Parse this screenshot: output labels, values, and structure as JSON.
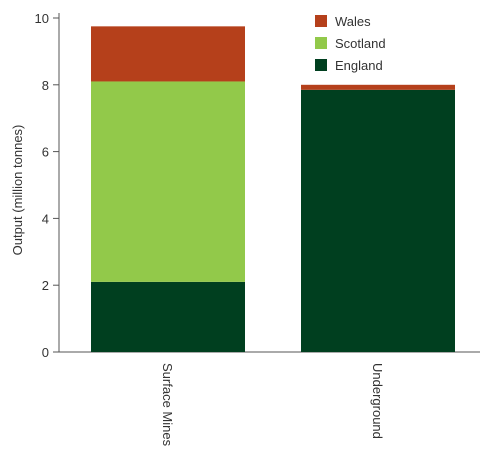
{
  "chart_data": {
    "type": "bar",
    "stacked": true,
    "categories": [
      "Surface Mines",
      "Underground"
    ],
    "series": [
      {
        "name": "England",
        "color": "#003f1f",
        "values": [
          2.1,
          7.85
        ]
      },
      {
        "name": "Scotland",
        "color": "#92c94a",
        "values": [
          6.0,
          0.0
        ]
      },
      {
        "name": "Wales",
        "color": "#b5401b",
        "values": [
          1.65,
          0.15
        ]
      }
    ],
    "xlabel": "",
    "ylabel": "Output (million tonnes)",
    "ylim": [
      0,
      10
    ],
    "yticks": [
      0,
      2,
      4,
      6,
      8,
      10
    ],
    "legend_position": "top-right",
    "legend_order": [
      "Wales",
      "Scotland",
      "England"
    ],
    "grid": false
  }
}
